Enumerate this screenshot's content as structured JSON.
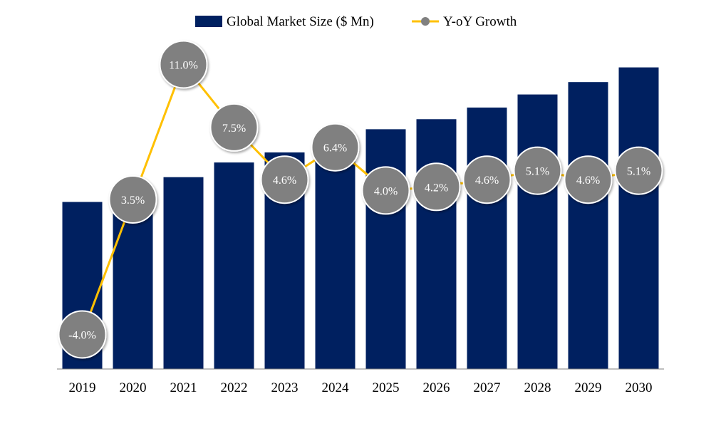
{
  "chart_data": {
    "type": "bar",
    "categories": [
      "2019",
      "2020",
      "2021",
      "2022",
      "2023",
      "2024",
      "2025",
      "2026",
      "2027",
      "2028",
      "2029",
      "2030"
    ],
    "series": [
      {
        "name": "Global Market Size ($ Mn)",
        "type": "bar",
        "color": "#002060",
        "values": [
          216,
          225,
          248,
          267,
          280,
          298,
          310,
          323,
          338,
          355,
          371,
          390
        ]
      },
      {
        "name": "Y-oY Growth",
        "type": "line",
        "line_color": "#FFC000",
        "marker_color": "#808080",
        "values": [
          -4.0,
          3.5,
          11.0,
          7.5,
          4.6,
          6.4,
          4.0,
          4.2,
          4.6,
          5.1,
          4.6,
          5.1
        ],
        "labels": [
          "-4.0%",
          "3.5%",
          "11.0%",
          "7.5%",
          "4.6%",
          "6.4%",
          "4.0%",
          "4.2%",
          "4.6%",
          "5.1%",
          "4.6%",
          "5.1%"
        ]
      }
    ],
    "bar_ylim": [
      0,
      420
    ],
    "line_ylim": [
      -6,
      13
    ],
    "legend": "top-center",
    "grid": false,
    "title": "",
    "xlabel": "",
    "ylabel": ""
  }
}
